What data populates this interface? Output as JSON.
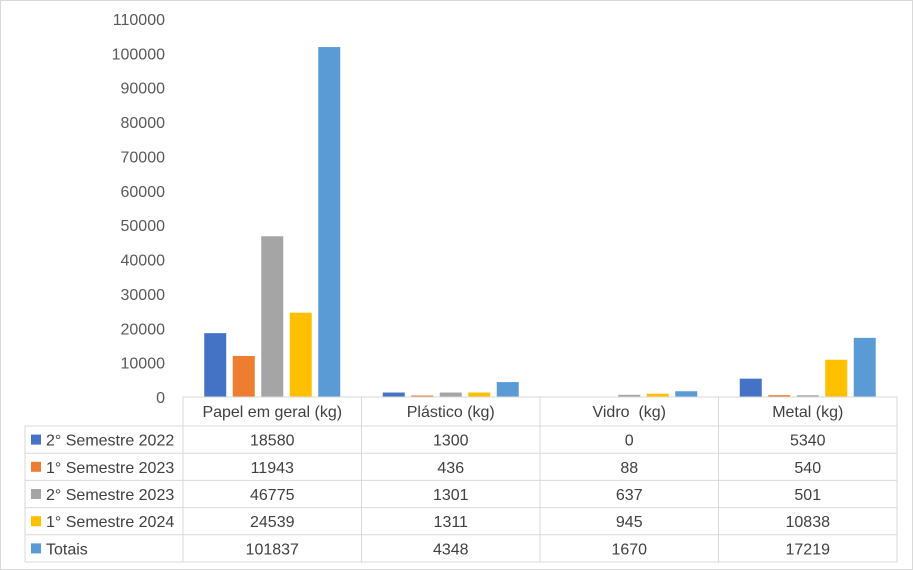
{
  "chart_data": {
    "type": "bar",
    "title": "",
    "xlabel": "",
    "ylabel": "",
    "ylim": [
      0,
      110000
    ],
    "yticks": [
      0,
      10000,
      20000,
      30000,
      40000,
      50000,
      60000,
      70000,
      80000,
      90000,
      100000,
      110000
    ],
    "grid": false,
    "legend": "data-table",
    "categories": [
      "Papel em geral (kg)",
      "Plástico (kg)",
      "Vidro  (kg)",
      "Metal (kg)"
    ],
    "series": [
      {
        "name": "2° Semestre 2022",
        "color": "#4472c4",
        "values": [
          18580,
          1300,
          0,
          5340
        ]
      },
      {
        "name": "1° Semestre 2023",
        "color": "#ed7d31",
        "values": [
          11943,
          436,
          88,
          540
        ]
      },
      {
        "name": "2° Semestre 2023",
        "color": "#a5a5a5",
        "values": [
          46775,
          1301,
          637,
          501
        ]
      },
      {
        "name": "1° Semestre 2024",
        "color": "#ffc000",
        "values": [
          24539,
          1311,
          945,
          10838
        ]
      },
      {
        "name": "Totais",
        "color": "#5b9bd5",
        "values": [
          101837,
          4348,
          1670,
          17219
        ]
      }
    ]
  }
}
